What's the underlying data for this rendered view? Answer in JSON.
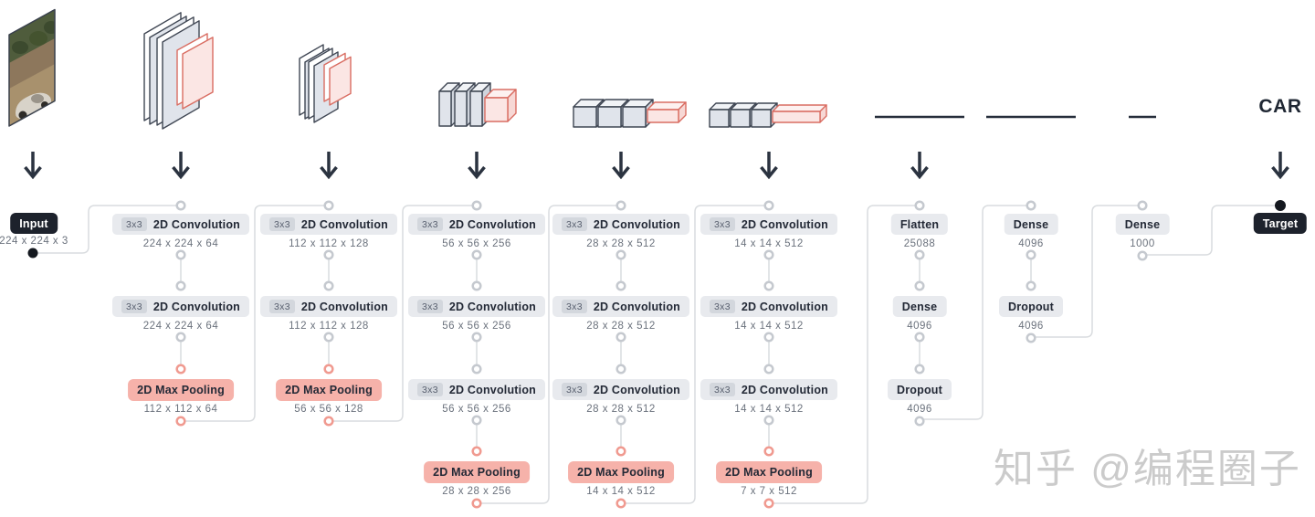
{
  "watermark": "知乎 @编程圈子",
  "colors": {
    "conv_badge_bg": "#e8eaee",
    "pool_badge_bg": "#f6b2aa",
    "dark_badge_bg": "#1d222c",
    "gray_ring": "#c5c9cf",
    "red_ring": "#f09a90",
    "connector_line": "#d9dcdf",
    "arrow": "#2b3340",
    "plate_gray": "#e0e4eb",
    "plate_pink": "#fbe6e4",
    "pink_outline": "#d96d62",
    "gray_outline": "#3f4653",
    "dim_text": "#6b727d",
    "watermark_gray": "#c9c9c9"
  },
  "stages": [
    {
      "name": "input",
      "badge": "Input",
      "dims": "224 x 224 x 3",
      "illustration": "car-photo"
    },
    {
      "name": "conv-block-1",
      "illustration": "two-plates-large",
      "nodes": [
        {
          "kind": "conv",
          "chip": "3x3",
          "label": "2D Convolution",
          "dims": "224 x 224 x 64"
        },
        {
          "kind": "conv",
          "chip": "3x3",
          "label": "2D Convolution",
          "dims": "224 x 224 x 64"
        },
        {
          "kind": "pool",
          "label": "2D Max Pooling",
          "dims": "112 x 112 x 64"
        }
      ]
    },
    {
      "name": "conv-block-2",
      "illustration": "two-plates-small",
      "nodes": [
        {
          "kind": "conv",
          "chip": "3x3",
          "label": "2D Convolution",
          "dims": "112 x 112 x 128"
        },
        {
          "kind": "conv",
          "chip": "3x3",
          "label": "2D Convolution",
          "dims": "112 x 112 x 128"
        },
        {
          "kind": "pool",
          "label": "2D Max Pooling",
          "dims": "56 x 56 x 128"
        }
      ]
    },
    {
      "name": "conv-block-3",
      "illustration": "three-slabs-cube",
      "nodes": [
        {
          "kind": "conv",
          "chip": "3x3",
          "label": "2D Convolution",
          "dims": "56 x 56 x 256"
        },
        {
          "kind": "conv",
          "chip": "3x3",
          "label": "2D Convolution",
          "dims": "56 x 56 x 256"
        },
        {
          "kind": "conv",
          "chip": "3x3",
          "label": "2D Convolution",
          "dims": "56 x 56 x 256"
        },
        {
          "kind": "pool",
          "label": "2D Max Pooling",
          "dims": "28 x 28 x 256"
        }
      ]
    },
    {
      "name": "conv-block-4",
      "illustration": "three-cubes-bar",
      "nodes": [
        {
          "kind": "conv",
          "chip": "3x3",
          "label": "2D Convolution",
          "dims": "28 x 28 x 512"
        },
        {
          "kind": "conv",
          "chip": "3x3",
          "label": "2D Convolution",
          "dims": "28 x 28 x 512"
        },
        {
          "kind": "conv",
          "chip": "3x3",
          "label": "2D Convolution",
          "dims": "28 x 28 x 512"
        },
        {
          "kind": "pool",
          "label": "2D Max Pooling",
          "dims": "14 x 14 x 512"
        }
      ]
    },
    {
      "name": "conv-block-5",
      "illustration": "three-small-cubes-bar",
      "nodes": [
        {
          "kind": "conv",
          "chip": "3x3",
          "label": "2D Convolution",
          "dims": "14 x 14 x 512"
        },
        {
          "kind": "conv",
          "chip": "3x3",
          "label": "2D Convolution",
          "dims": "14 x 14 x 512"
        },
        {
          "kind": "conv",
          "chip": "3x3",
          "label": "2D Convolution",
          "dims": "14 x 14 x 512"
        },
        {
          "kind": "pool",
          "label": "2D Max Pooling",
          "dims": "7 x 7 x 512"
        }
      ]
    },
    {
      "name": "classifier-1",
      "illustration": "vector-line-long",
      "nodes": [
        {
          "kind": "dense",
          "label": "Flatten",
          "dims": "25088"
        },
        {
          "kind": "dense",
          "label": "Dense",
          "dims": "4096"
        },
        {
          "kind": "dense",
          "label": "Dropout",
          "dims": "4096"
        }
      ]
    },
    {
      "name": "classifier-2",
      "illustration": "vector-line-long",
      "nodes": [
        {
          "kind": "dense",
          "label": "Dense",
          "dims": "4096"
        },
        {
          "kind": "dense",
          "label": "Dropout",
          "dims": "4096"
        }
      ]
    },
    {
      "name": "classifier-3",
      "illustration": "vector-line-short",
      "nodes": [
        {
          "kind": "dense",
          "label": "Dense",
          "dims": "1000"
        }
      ]
    },
    {
      "name": "target",
      "badge": "Target",
      "top_label": "CAR",
      "illustration": "class-label"
    }
  ]
}
